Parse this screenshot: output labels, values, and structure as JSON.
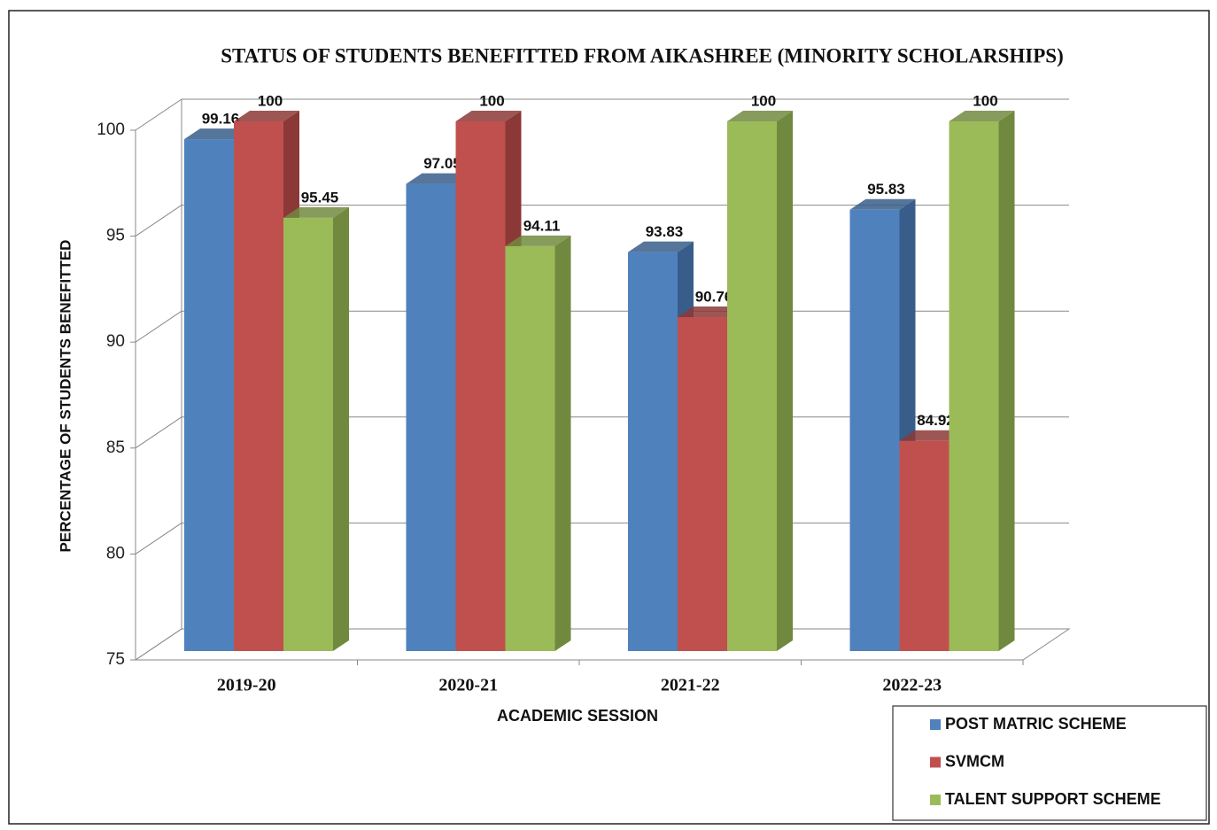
{
  "chart_data": {
    "type": "bar3d",
    "title": "STATUS OF STUDENTS BENEFITTED FROM AIKASHREE (MINORITY SCHOLARSHIPS)",
    "x_label": "ACADEMIC SESSION",
    "y_label": "PERCENTAGE OF STUDENTS BENEFITTED",
    "categories": [
      "2019-20",
      "2020-21",
      "2021-22",
      "2022-23"
    ],
    "series": [
      {
        "name": "POST MATRIC SCHEME",
        "color": "#4f81bd",
        "side": "#385d8a",
        "values": [
          99.16,
          97.05,
          93.83,
          95.83
        ]
      },
      {
        "name": "SVMCM",
        "color": "#c0504d",
        "side": "#8c3836",
        "values": [
          100,
          100,
          90.76,
          84.92
        ]
      },
      {
        "name": "TALENT SUPPORT SCHEME",
        "color": "#9bbb59",
        "side": "#71893f",
        "values": [
          95.45,
          94.11,
          100,
          100
        ]
      }
    ],
    "ylim": [
      75,
      100
    ],
    "yticks": [
      75,
      80,
      85,
      90,
      95,
      100
    ],
    "grid": true,
    "legend": "lower right"
  }
}
